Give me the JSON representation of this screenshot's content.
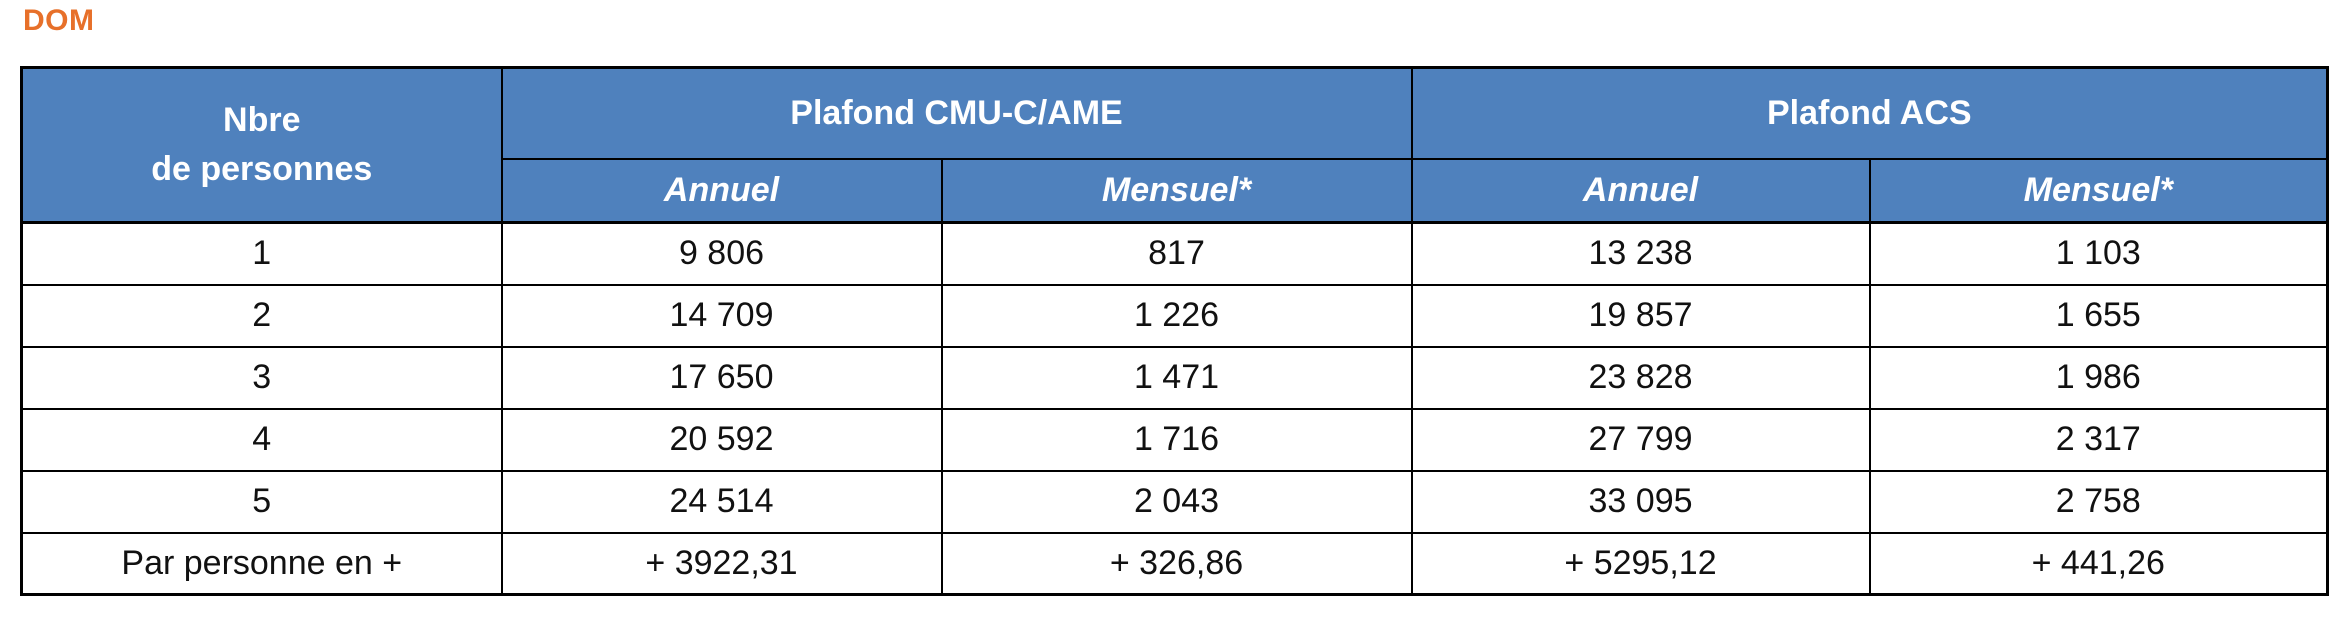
{
  "title": "DOM",
  "colors": {
    "title_orange": "#E7702A",
    "header_blue": "#4F81BD",
    "header_text": "#FFFFFF",
    "border": "#000000"
  },
  "table": {
    "corner_line1": "Nbre",
    "corner_line2": "de personnes",
    "groups": [
      {
        "label": "Plafond CMU-C/AME"
      },
      {
        "label": "Plafond ACS"
      }
    ],
    "sub_headers": [
      "Annuel",
      "Mensuel*",
      "Annuel",
      "Mensuel*"
    ],
    "rows": [
      {
        "label": "1",
        "values": [
          "9 806",
          "817",
          "13 238",
          "1 103"
        ]
      },
      {
        "label": "2",
        "values": [
          "14 709",
          "1 226",
          "19 857",
          "1 655"
        ]
      },
      {
        "label": "3",
        "values": [
          "17 650",
          "1 471",
          "23 828",
          "1 986"
        ]
      },
      {
        "label": "4",
        "values": [
          "20 592",
          "1 716",
          "27 799",
          "2 317"
        ]
      },
      {
        "label": "5",
        "values": [
          "24 514",
          "2 043",
          "33 095",
          "2 758"
        ]
      },
      {
        "label": "Par personne en +",
        "values": [
          "+ 3922,31",
          "+ 326,86",
          "+ 5295,12",
          "+ 441,26"
        ]
      }
    ]
  }
}
